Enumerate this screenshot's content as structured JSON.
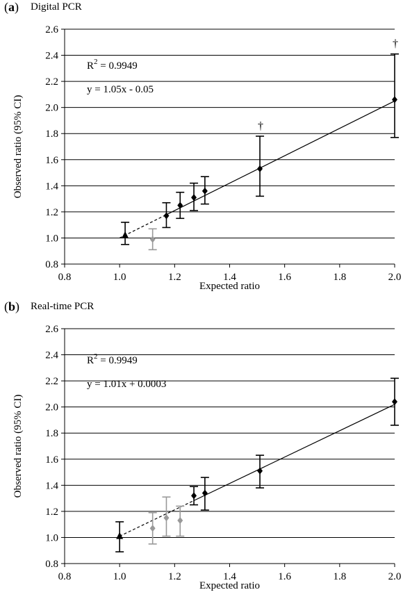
{
  "chart_data": [
    {
      "type": "scatter",
      "panel_label": "a",
      "title": "Digital PCR",
      "xlabel": "Expected ratio",
      "ylabel": "Observed ratio (95% CI)",
      "xlim": [
        0.8,
        2.0
      ],
      "ylim": [
        0.8,
        2.6
      ],
      "xticks": [
        "0.8",
        "1.0",
        "1.2",
        "1.4",
        "1.6",
        "1.8",
        "2.0"
      ],
      "yticks": [
        "0.8",
        "1.0",
        "1.2",
        "1.4",
        "1.6",
        "1.8",
        "2.0",
        "2.2",
        "2.4",
        "2.6"
      ],
      "grid": "horizontal",
      "annotations": [
        "R2 = 0.9949",
        "y = 1.05x - 0.05"
      ],
      "r2_label": "R",
      "r2_sup": "2",
      "r2_value": " = 0.9949",
      "equation": "y = 1.05x - 0.05",
      "fit_line": {
        "x": [
          1.0,
          2.0
        ],
        "y": [
          1.0,
          2.05
        ],
        "dashed_to_x": 1.17
      },
      "series": [
        {
          "marker": "triangle",
          "color": "#000000",
          "x": [
            1.02
          ],
          "y": [
            1.02
          ],
          "ci_low": [
            0.95
          ],
          "ci_high": [
            1.12
          ]
        },
        {
          "marker": "diamond",
          "color": "#999999",
          "x": [
            1.12
          ],
          "y": [
            0.99
          ],
          "ci_low": [
            0.91
          ],
          "ci_high": [
            1.07
          ]
        },
        {
          "marker": "diamond",
          "color": "#000000",
          "x": [
            1.17,
            1.22,
            1.27,
            1.31,
            1.51,
            2.0
          ],
          "y": [
            1.17,
            1.25,
            1.31,
            1.36,
            1.53,
            2.06
          ],
          "ci_low": [
            1.08,
            1.15,
            1.21,
            1.26,
            1.32,
            1.77
          ],
          "ci_high": [
            1.27,
            1.35,
            1.42,
            1.47,
            1.78,
            2.41
          ],
          "dagger": [
            false,
            false,
            false,
            false,
            true,
            true
          ]
        }
      ],
      "dagger_symbol": "†"
    },
    {
      "type": "scatter",
      "panel_label": "b",
      "title": "Real-time PCR",
      "xlabel": "Expected ratio",
      "ylabel": "Observed ratio (95% CI)",
      "xlim": [
        0.8,
        2.0
      ],
      "ylim": [
        0.8,
        2.6
      ],
      "xticks": [
        "0.8",
        "1.0",
        "1.2",
        "1.4",
        "1.6",
        "1.8",
        "2.0"
      ],
      "yticks": [
        "0.8",
        "1.0",
        "1.2",
        "1.4",
        "1.6",
        "1.8",
        "2.0",
        "2.2",
        "2.4",
        "2.6"
      ],
      "grid": "horizontal",
      "annotations": [
        "R2 = 0.9949",
        "y = 1.01x + 0.0003"
      ],
      "r2_label": "R",
      "r2_sup": "2",
      "r2_value": " = 0.9949",
      "equation": "y = 1.01x + 0.0003",
      "fit_line": {
        "x": [
          1.0,
          2.0
        ],
        "y": [
          1.01,
          2.02
        ],
        "dashed_to_x": 1.27
      },
      "series": [
        {
          "marker": "triangle",
          "color": "#000000",
          "x": [
            1.0
          ],
          "y": [
            1.01
          ],
          "ci_low": [
            0.89
          ],
          "ci_high": [
            1.12
          ]
        },
        {
          "marker": "diamond",
          "color": "#999999",
          "x": [
            1.12,
            1.17,
            1.22
          ],
          "y": [
            1.07,
            1.15,
            1.13
          ],
          "ci_low": [
            0.95,
            1.01,
            1.01
          ],
          "ci_high": [
            1.19,
            1.31,
            1.24
          ]
        },
        {
          "marker": "diamond",
          "color": "#000000",
          "x": [
            1.27,
            1.31,
            1.51,
            2.0
          ],
          "y": [
            1.32,
            1.34,
            1.51,
            2.04
          ],
          "ci_low": [
            1.25,
            1.21,
            1.38,
            1.86
          ],
          "ci_high": [
            1.39,
            1.46,
            1.63,
            2.22
          ]
        }
      ]
    }
  ]
}
